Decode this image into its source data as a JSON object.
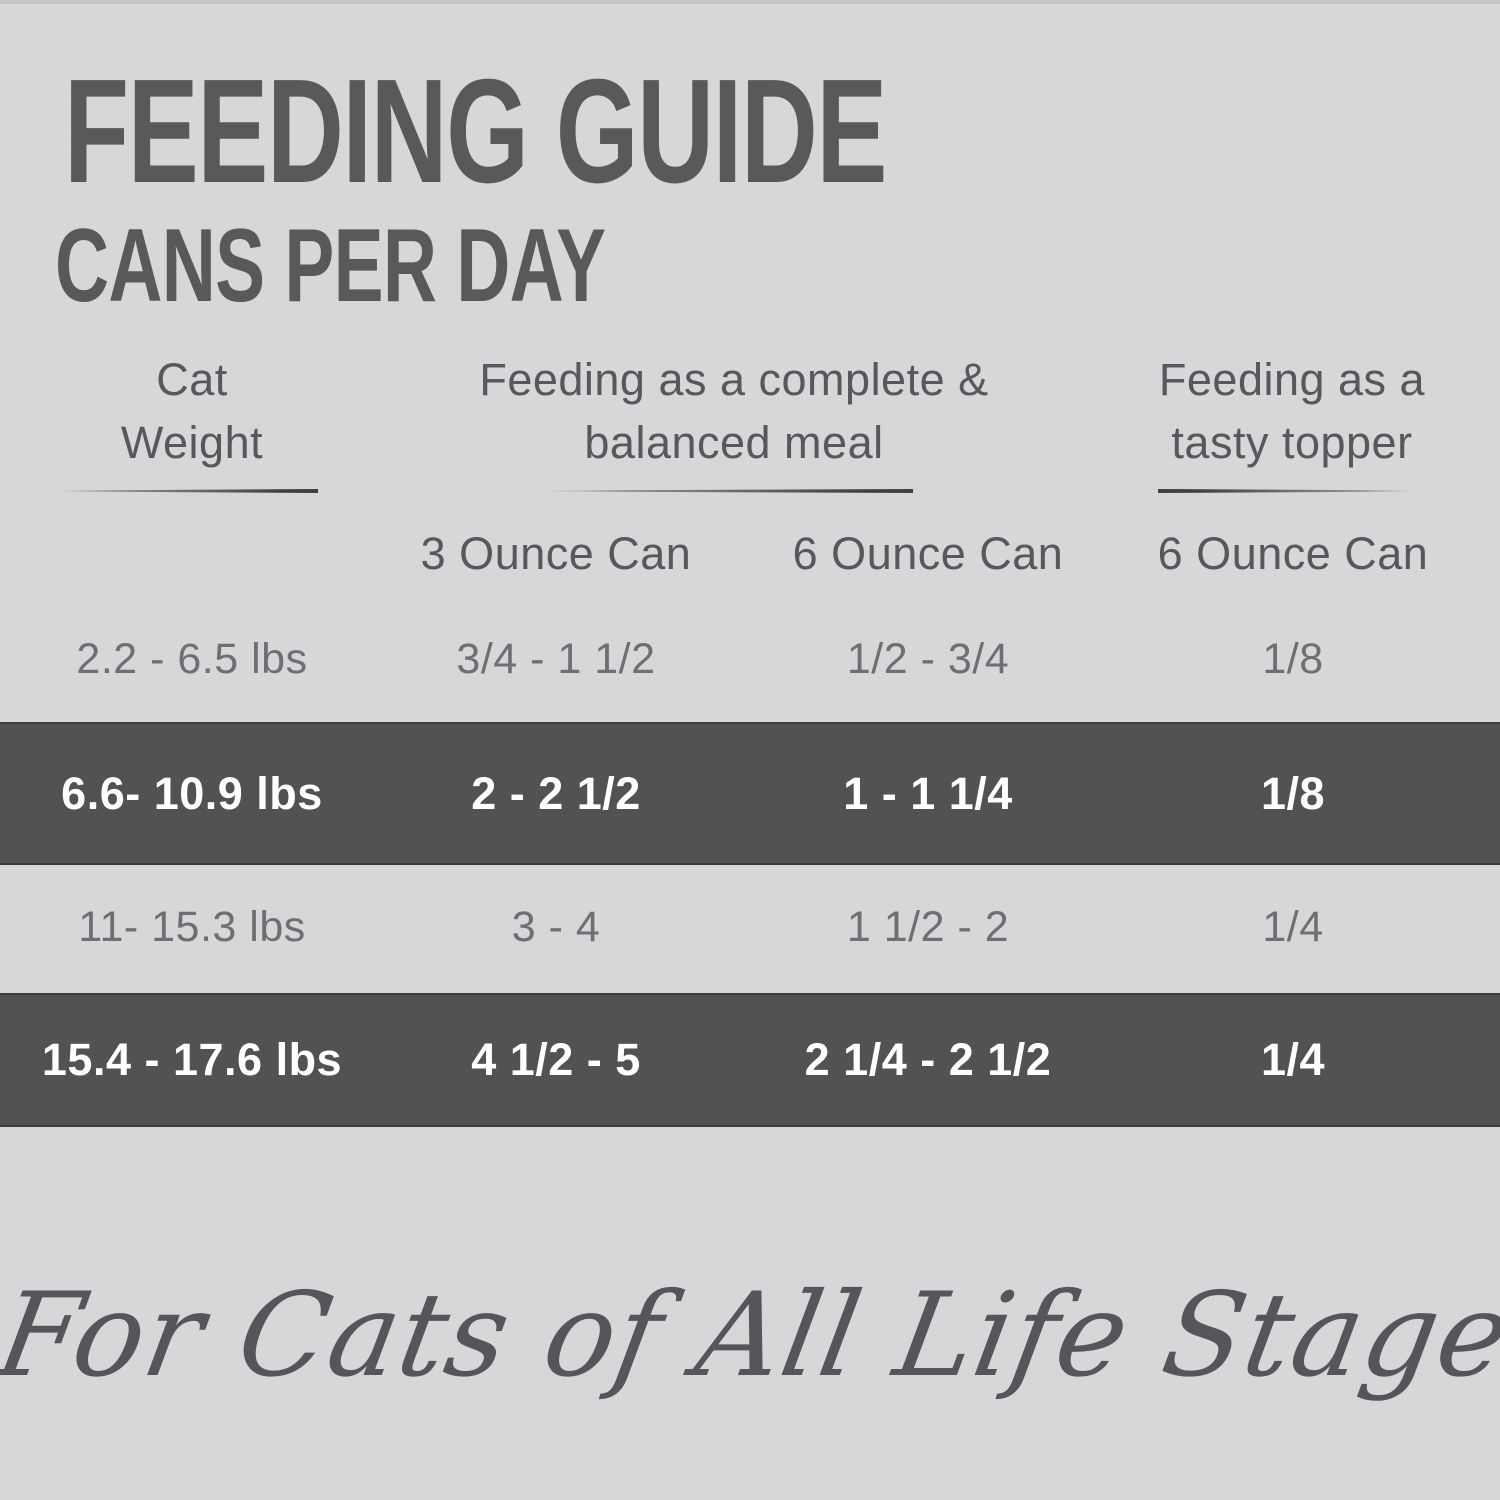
{
  "chart_data": {
    "type": "table",
    "title": "FEEDING GUIDE",
    "subtitle": "CANS PER DAY",
    "column_groups": [
      {
        "label": "Cat Weight",
        "columns": []
      },
      {
        "label": "Feeding as a complete & balanced meal",
        "columns": [
          "3 Ounce Can",
          "6 Ounce Can"
        ]
      },
      {
        "label": "Feeding as a tasty topper",
        "columns": [
          "6 Ounce Can"
        ]
      }
    ],
    "rows": [
      {
        "highlighted": false,
        "cells": [
          "2.2 - 6.5 lbs",
          "3/4 - 1 1/2",
          "1/2 - 3/4",
          "1/8"
        ]
      },
      {
        "highlighted": true,
        "cells": [
          "6.6- 10.9 lbs",
          "2 - 2 1/2",
          "1 - 1 1/4",
          "1/8"
        ]
      },
      {
        "highlighted": false,
        "cells": [
          "11- 15.3 lbs",
          "3 - 4",
          "1 1/2 - 2",
          "1/4"
        ]
      },
      {
        "highlighted": true,
        "cells": [
          "15.4 - 17.6 lbs",
          "4 1/2 - 5",
          "2 1/4 - 2 1/2",
          "1/4"
        ]
      }
    ],
    "footnote": "For Cats of All Life Stages"
  },
  "display": {
    "header_lines": [
      [
        "Cat",
        "Weight"
      ],
      [
        "Feeding as a complete &",
        "balanced meal"
      ],
      [
        "Feeding as a",
        "tasty topper"
      ]
    ],
    "sub_headers": [
      "3 Ounce Can",
      "6 Ounce Can",
      "6 Ounce Can"
    ],
    "tagline": "For Cats of All Life Stages"
  },
  "colors": {
    "background": "#d5d7d8",
    "band": "#525252",
    "band_edge": "#3c3c3c",
    "title_text": "#58595b",
    "header_text": "#56585b",
    "row_text": "#6d6f72",
    "band_text": "#ffffff",
    "underline": "#3e4042"
  }
}
